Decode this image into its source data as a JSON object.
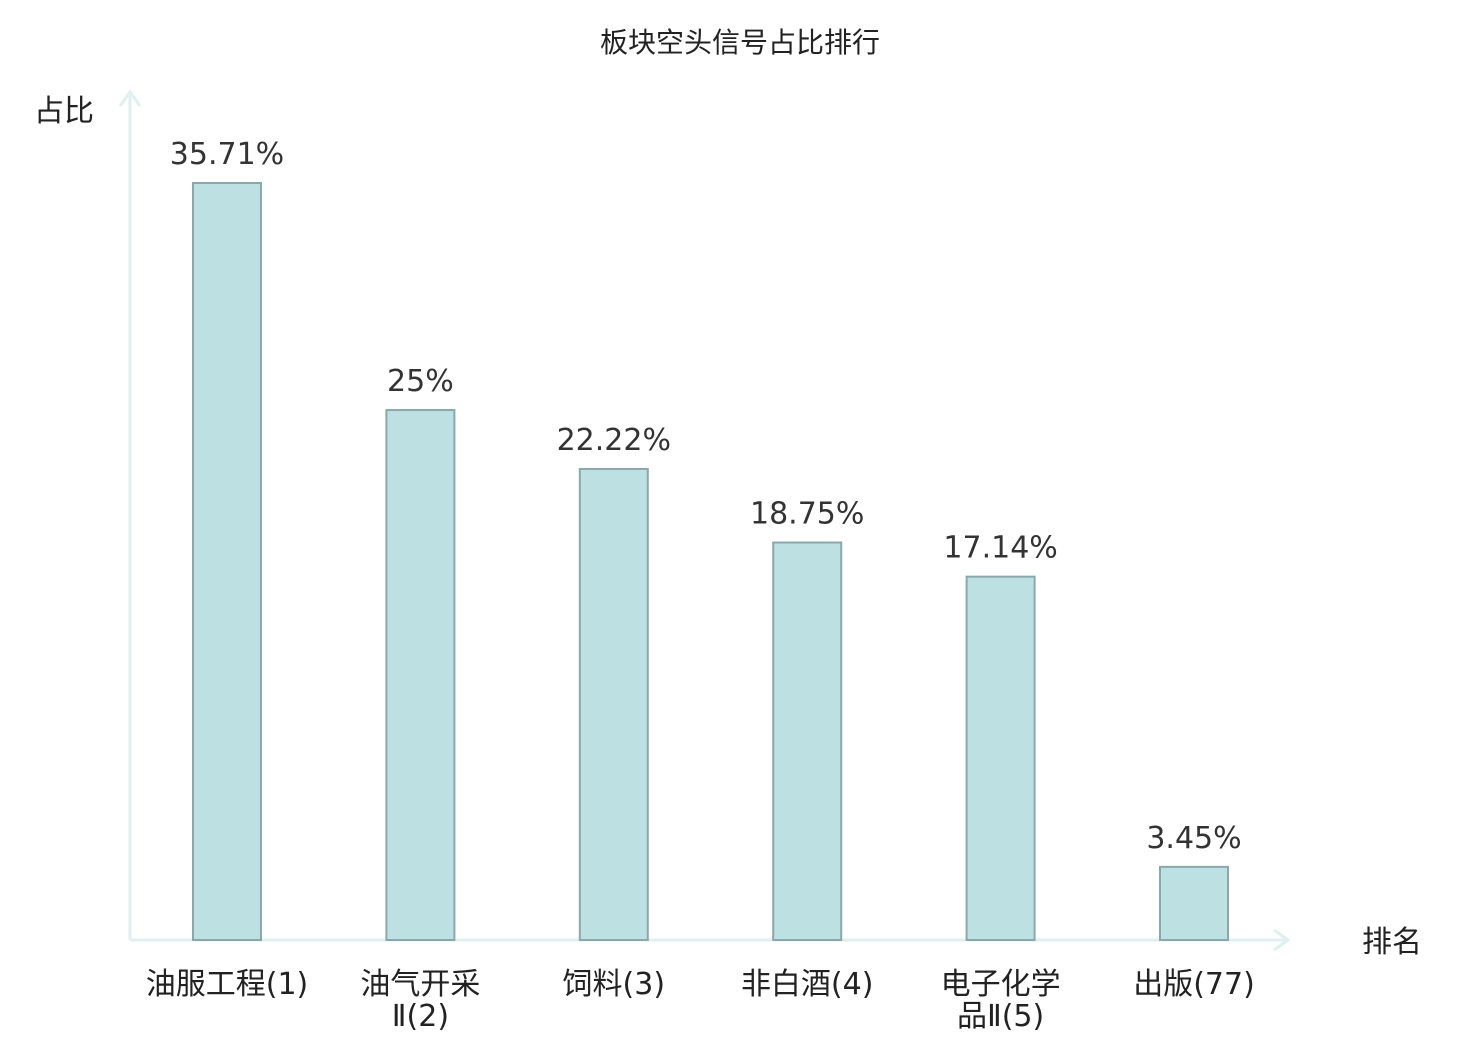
{
  "colors": {
    "bar_fill": "#bde0e3",
    "bar_stroke": "#8aa8ab",
    "axis": "#dff1ee",
    "highlight": "#e02020",
    "text": "#222222"
  },
  "chart_data": {
    "type": "bar",
    "title": "板块空头信号占比排行",
    "xlabel": "排名",
    "ylabel": "占比",
    "grid": false,
    "ylim": [
      0,
      40
    ],
    "categories": [
      {
        "lines": [
          "油服工程(1)"
        ],
        "highlight": false
      },
      {
        "lines": [
          "油气开采",
          "Ⅱ(2)"
        ],
        "highlight": false
      },
      {
        "lines": [
          "饲料(3)"
        ],
        "highlight": false
      },
      {
        "lines": [
          "非白酒(4)"
        ],
        "highlight": false
      },
      {
        "lines": [
          "电子化学",
          "品Ⅱ(5)"
        ],
        "highlight": false
      },
      {
        "lines": [
          "出版(77)"
        ],
        "highlight": true
      }
    ],
    "values": [
      35.71,
      25,
      22.22,
      18.75,
      17.14,
      3.45
    ],
    "value_labels": [
      "35.71%",
      "25%",
      "22.22%",
      "18.75%",
      "17.14%",
      "3.45%"
    ]
  }
}
